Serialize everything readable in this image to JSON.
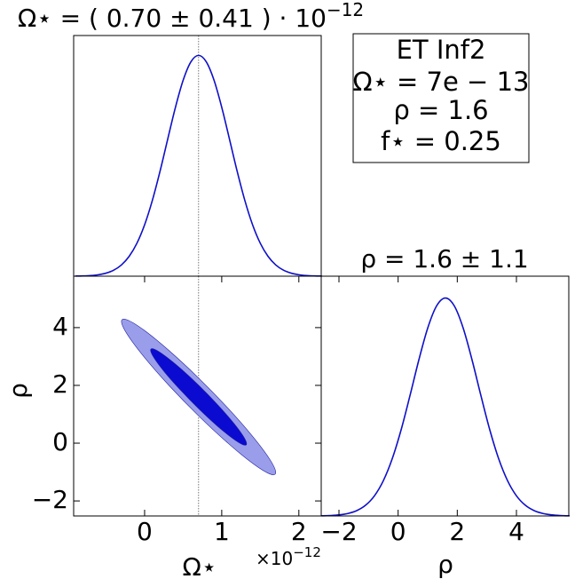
{
  "chart_data": [
    {
      "type": "line",
      "title": "Ω⋆ = ( 0.70 ± 0.41 ) · 10",
      "title_exponent": "−12",
      "color": "#0f10c8",
      "x": [
        -0.9,
        -0.8,
        -0.7,
        -0.6,
        -0.5,
        -0.4,
        -0.3,
        -0.2,
        -0.1,
        0.0,
        0.1,
        0.2,
        0.3,
        0.4,
        0.5,
        0.6,
        0.7,
        0.8,
        0.9,
        1.0,
        1.1,
        1.2,
        1.3,
        1.4,
        1.5,
        1.6,
        1.7,
        1.8,
        1.9,
        2.0,
        2.1,
        2.2,
        2.3
      ],
      "values": [
        0.0005,
        0.0012,
        0.0029,
        0.0066,
        0.0138,
        0.0273,
        0.0511,
        0.0899,
        0.149,
        0.2328,
        0.3427,
        0.4754,
        0.6213,
        0.7651,
        0.8878,
        0.9707,
        1,
        0.9707,
        0.8878,
        0.7651,
        0.6213,
        0.4754,
        0.3427,
        0.2328,
        0.149,
        0.0899,
        0.0511,
        0.0273,
        0.0138,
        0.0066,
        0.0029,
        0.0012,
        0.0005
      ],
      "xlim": [
        -0.92,
        2.29
      ],
      "ylim": [
        0,
        1.09
      ],
      "truth_x": 0.7
    },
    {
      "type": "contour",
      "xlabel": "Ω⋆",
      "ylabel": "ρ",
      "x_offset_label": "×10",
      "x_offset_exponent": "−12",
      "contours": [
        {
          "color": "#9a9eea",
          "x": [
            1.7,
            1.624,
            1.407,
            1.083,
            0.7,
            0.317,
            -0.007,
            -0.224,
            -0.3,
            -0.224,
            -0.007,
            0.317,
            0.7,
            1.083,
            1.407,
            1.624
          ],
          "y": [
            -1.014,
            -0.564,
            0.215,
            1.205,
            2.255,
            3.205,
            3.911,
            4.266,
            4.214,
            3.764,
            2.985,
            1.995,
            0.945,
            -0.005,
            -0.711,
            -1.066
          ]
        },
        {
          "color": "#0a0ad0",
          "x": [
            1.323,
            1.276,
            1.141,
            0.938,
            0.7,
            0.462,
            0.259,
            0.124,
            0.077,
            0.124,
            0.259,
            0.462,
            0.7,
            0.938,
            1.141,
            1.276
          ],
          "y": [
            -0.022,
            0.256,
            0.74,
            1.354,
            2.006,
            2.596,
            3.034,
            3.254,
            3.222,
            2.944,
            2.46,
            1.846,
            1.194,
            0.604,
            0.166,
            -0.055
          ]
        }
      ],
      "xlim": [
        -0.92,
        2.29
      ],
      "ylim": [
        -2.52,
        5.78
      ],
      "truth_x": 0.7,
      "xticks": [
        0,
        1,
        2
      ],
      "yticks": [
        {
          "value": -2,
          "label": "−2"
        },
        0,
        2,
        4
      ]
    },
    {
      "type": "line",
      "title": "ρ = 1.6 ± 1.1",
      "xlabel": "ρ",
      "color": "#0f10c8",
      "x": [
        -2.6,
        -2.3,
        -2.0,
        -1.7,
        -1.4,
        -1.1,
        -0.8,
        -0.5,
        -0.2,
        0.1,
        0.4,
        0.7,
        1.0,
        1.3,
        1.6,
        1.9,
        2.2,
        2.5,
        2.8,
        3.1,
        3.4,
        3.7,
        4.0,
        4.3,
        4.6,
        4.9,
        5.2,
        5.5,
        5.8
      ],
      "values": [
        0.0007,
        0.0019,
        0.0047,
        0.0111,
        0.0243,
        0.0492,
        0.0925,
        0.1617,
        0.2622,
        0.3946,
        0.5516,
        0.7155,
        0.8618,
        0.9635,
        1,
        0.9635,
        0.8618,
        0.7155,
        0.5516,
        0.3946,
        0.2622,
        0.1617,
        0.0925,
        0.0492,
        0.0243,
        0.0111,
        0.0047,
        0.0019,
        0.0007
      ],
      "xlim": [
        -2.6,
        5.77
      ],
      "ylim": [
        0,
        1.1
      ],
      "xticks": [
        {
          "value": -2,
          "label": "−2"
        },
        0,
        2,
        4
      ]
    }
  ],
  "annotation": {
    "lines": [
      "ET Inf2",
      "Ω⋆ = 7e − 13",
      "ρ = 1.6",
      "f⋆ = 0.25"
    ]
  }
}
